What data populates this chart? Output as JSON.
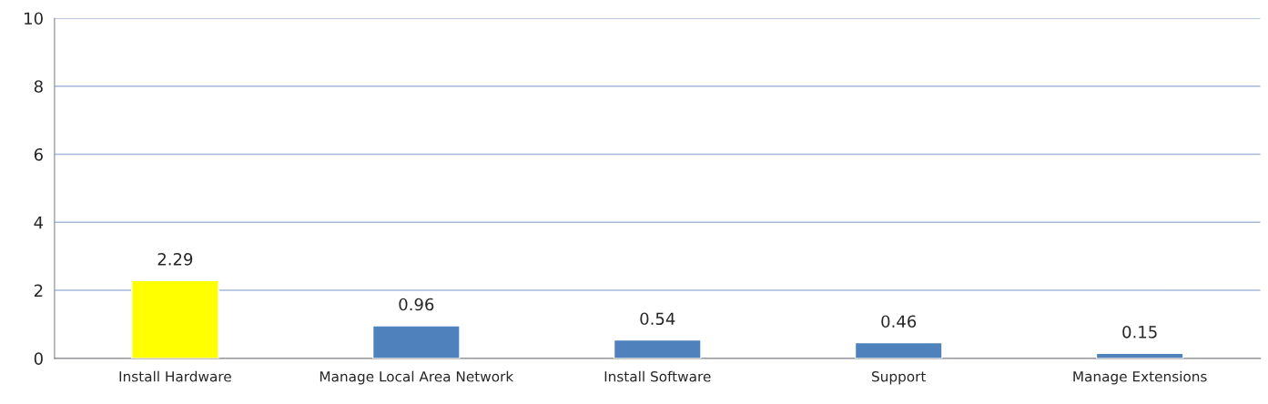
{
  "chart_data": {
    "type": "bar",
    "categories": [
      "Install Hardware",
      "Manage Local Area Network",
      "Install Software",
      "Support",
      "Manage Extensions"
    ],
    "values": [
      2.29,
      0.96,
      0.54,
      0.46,
      0.15
    ],
    "colors": [
      "#ffff00",
      "#4f81bd",
      "#4f81bd",
      "#4f81bd",
      "#4f81bd"
    ],
    "ylim": [
      0,
      10
    ],
    "yticks": [
      0,
      2,
      4,
      6,
      8,
      10
    ],
    "grid": "y",
    "data_labels": true,
    "legend": false
  }
}
